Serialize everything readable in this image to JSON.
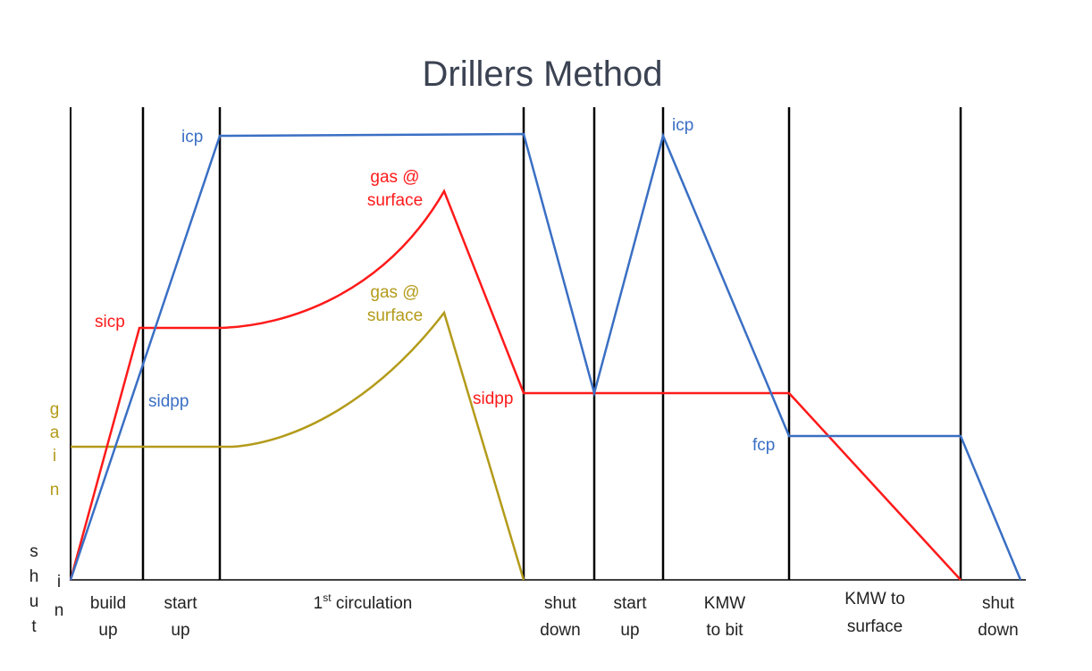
{
  "title": "Drillers Method",
  "colors": {
    "casing": "#ff1a1a",
    "drillpipe": "#3a6fc4",
    "gain": "#b39b1a",
    "divider": "#000000",
    "text": "#222222"
  },
  "vertical_text": {
    "shut_in": [
      "s",
      "h",
      "u",
      "t",
      "i",
      "n"
    ],
    "gain": [
      "g",
      "a",
      "i",
      "n"
    ]
  },
  "phases": [
    {
      "line1": "build",
      "line2": "up"
    },
    {
      "line1": "start",
      "line2": "up"
    },
    {
      "line1": "1",
      "sup": "st",
      "rest": " circulation"
    },
    {
      "line1": "shut",
      "line2": "down"
    },
    {
      "line1": "start",
      "line2": "up"
    },
    {
      "line1": "KMW",
      "line2": "to bit"
    },
    {
      "line1": "KMW to",
      "line2": "surface"
    },
    {
      "line1": "shut",
      "line2": "down"
    }
  ],
  "labels": {
    "icp_1": "icp",
    "icp_2": "icp",
    "sicp": "sicp",
    "sidpp_blue": "sidpp",
    "sidpp_red": "sidpp",
    "fcp": "fcp",
    "gas_surface_red_1": "gas @",
    "gas_surface_red_2": "surface",
    "gas_surface_gold_1": "gas @",
    "gas_surface_gold_2": "surface"
  }
}
